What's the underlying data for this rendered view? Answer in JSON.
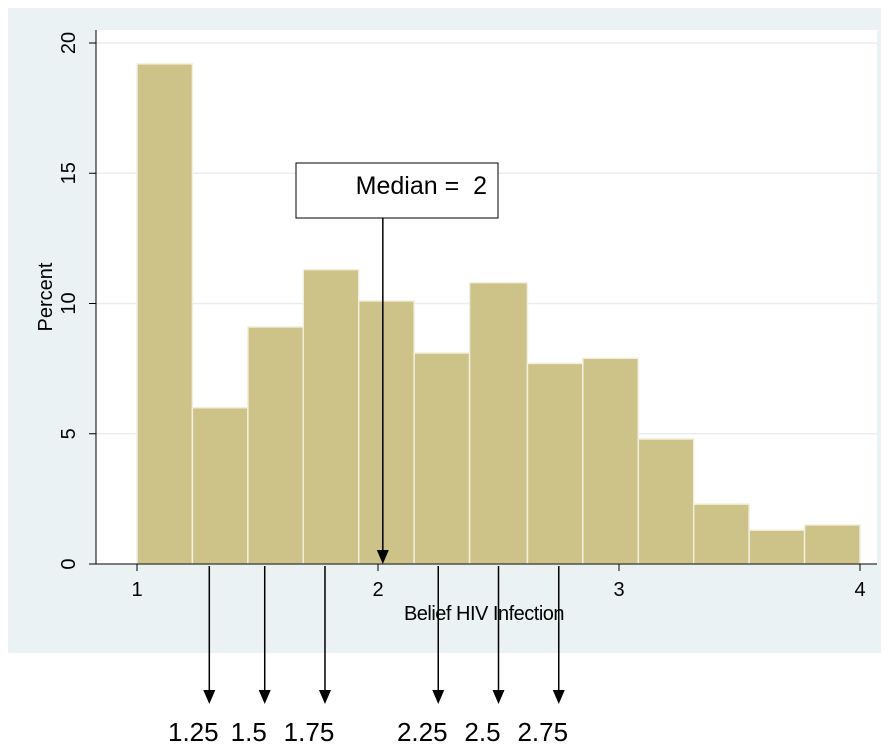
{
  "chart_data": {
    "type": "bar",
    "title": "",
    "xlabel": "Belief HIV Infection",
    "ylabel": "Percent",
    "xlim": [
      1,
      4
    ],
    "ylim": [
      0,
      20
    ],
    "xticks": [
      "1",
      "2",
      "3",
      "4"
    ],
    "yticks": [
      "0",
      "5",
      "10",
      "15",
      "20"
    ],
    "grid": true,
    "bins": [
      {
        "start": 1.0,
        "end": 1.23,
        "value": 19.2
      },
      {
        "start": 1.23,
        "end": 1.46,
        "value": 6.0
      },
      {
        "start": 1.46,
        "end": 1.69,
        "value": 9.1
      },
      {
        "start": 1.69,
        "end": 1.92,
        "value": 11.3
      },
      {
        "start": 1.92,
        "end": 2.15,
        "value": 10.1
      },
      {
        "start": 2.15,
        "end": 2.38,
        "value": 8.1
      },
      {
        "start": 2.38,
        "end": 2.62,
        "value": 10.8
      },
      {
        "start": 2.62,
        "end": 2.85,
        "value": 7.7
      },
      {
        "start": 2.85,
        "end": 3.08,
        "value": 7.9
      },
      {
        "start": 3.08,
        "end": 3.31,
        "value": 4.8
      },
      {
        "start": 3.31,
        "end": 3.54,
        "value": 2.3
      },
      {
        "start": 3.54,
        "end": 3.77,
        "value": 1.3
      },
      {
        "start": 3.77,
        "end": 4.0,
        "value": 1.5
      }
    ],
    "annotation": {
      "label": "Median =  2",
      "value": 2.02
    },
    "extra_markers": [
      {
        "label": "1.25",
        "value": 1.3
      },
      {
        "label": "1.5",
        "value": 1.53
      },
      {
        "label": "1.75",
        "value": 1.78
      },
      {
        "label": "2.25",
        "value": 2.25
      },
      {
        "label": "2.5",
        "value": 2.5
      },
      {
        "label": "2.75",
        "value": 2.75
      }
    ],
    "colors": {
      "bar_fill": "#cdc287",
      "bar_stroke": "#f2efdf",
      "plot_bg": "#ffffff",
      "outer_bg": "#eaf2f3",
      "grid": "#e8eef0",
      "axis": "#000000"
    }
  }
}
